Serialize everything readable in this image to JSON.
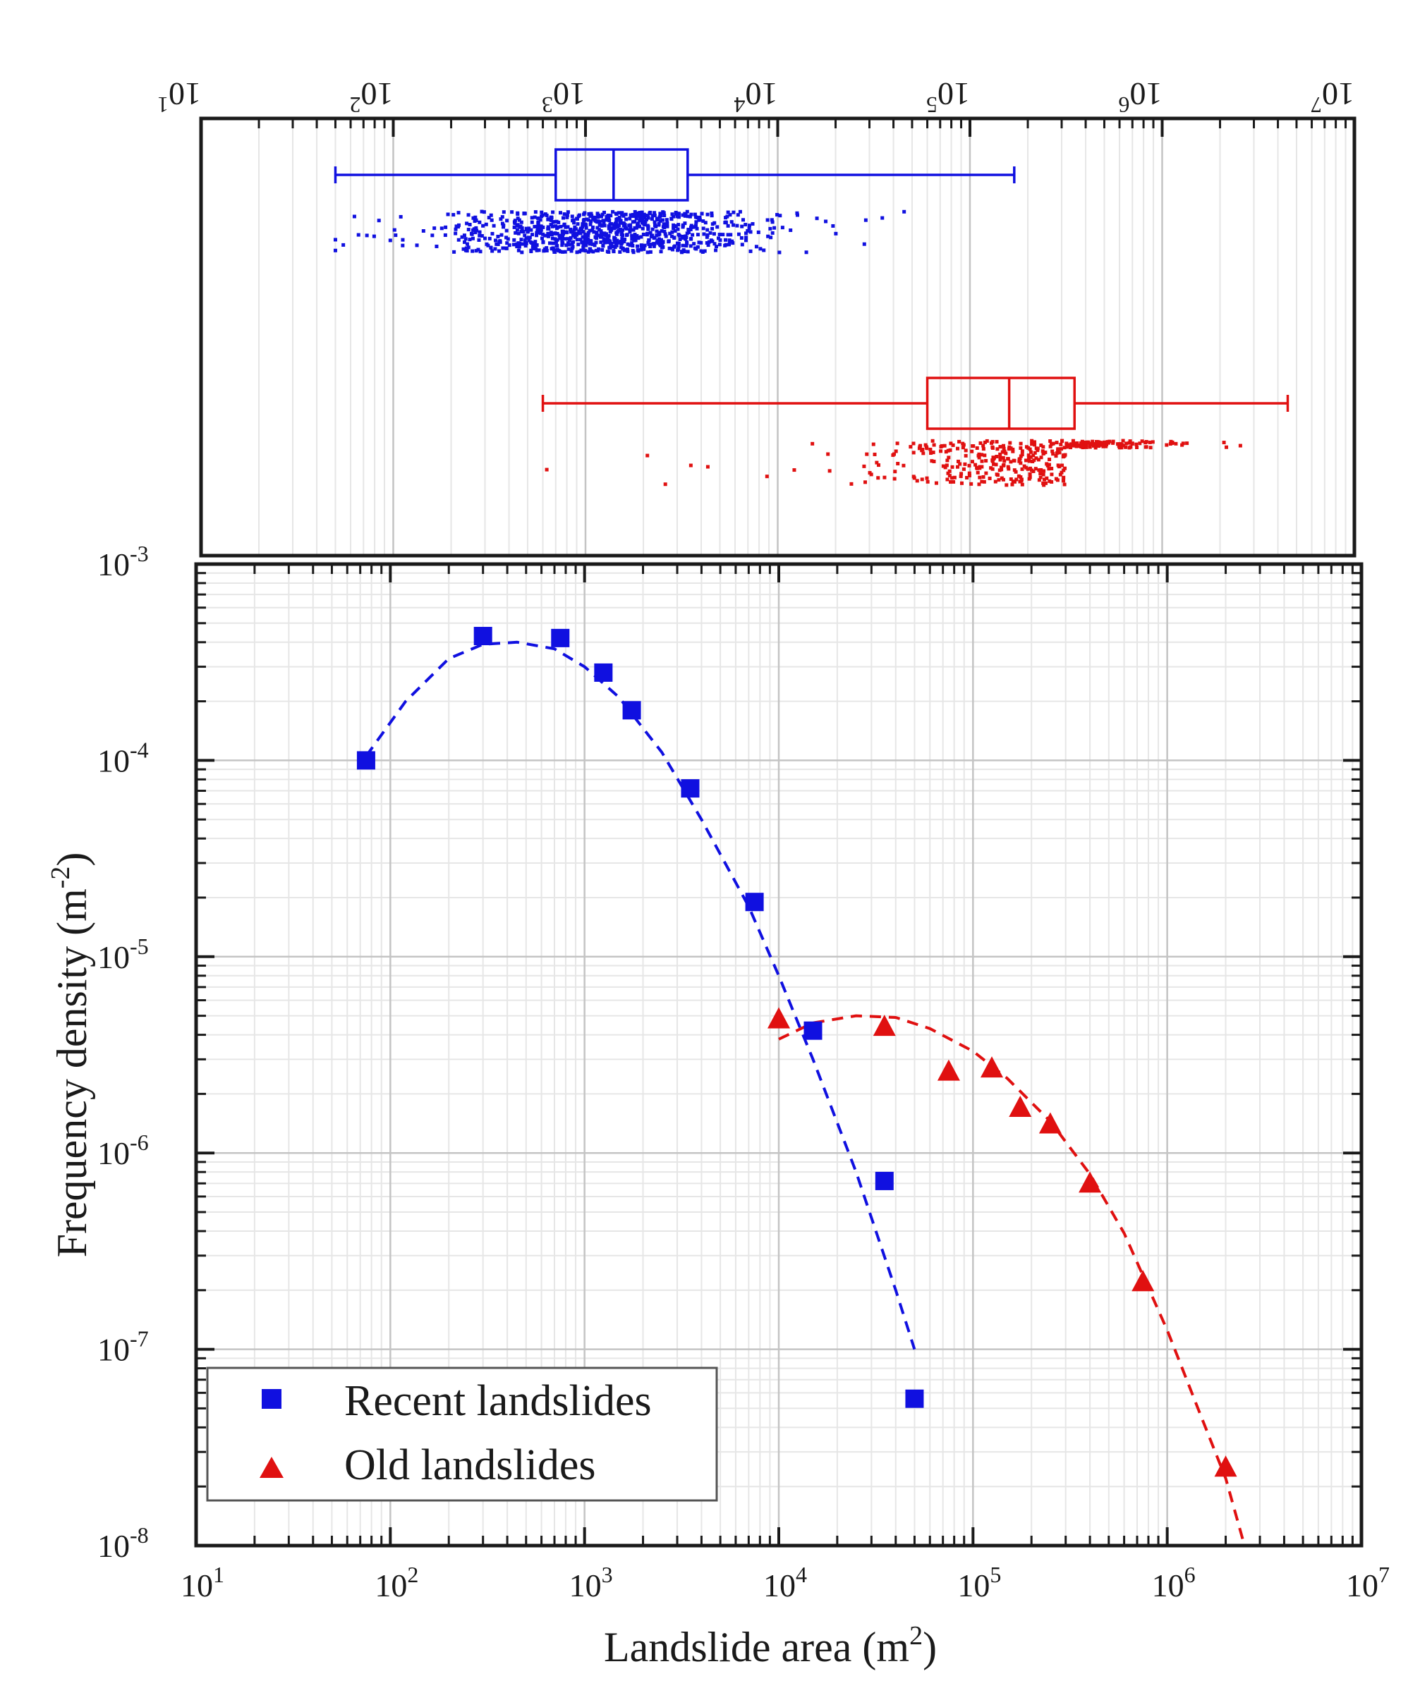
{
  "colors": {
    "recent": "#1010e0",
    "old": "#e01010",
    "axis": "#1a1a1a",
    "grid_major": "#c4c4c4",
    "grid_minor": "#e6e6e6"
  },
  "chart_data": [
    {
      "panel": "top",
      "type": "box",
      "x_scale": "log",
      "xlim": [
        10,
        10000000
      ],
      "x_tick_values": [
        10,
        100,
        1000,
        10000,
        100000,
        1000000,
        10000000
      ],
      "x_tick_labels": [
        {
          "base": "10",
          "exp": "1"
        },
        {
          "base": "10",
          "exp": "2"
        },
        {
          "base": "10",
          "exp": "3"
        },
        {
          "base": "10",
          "exp": "4"
        },
        {
          "base": "10",
          "exp": "5"
        },
        {
          "base": "10",
          "exp": "6"
        },
        {
          "base": "10",
          "exp": "7"
        }
      ],
      "series": [
        {
          "name": "Recent landslides",
          "min": 50,
          "q1": 700,
          "median": 1400,
          "q3": 3400,
          "max": 170000,
          "scatter_range": [
            50,
            90000
          ],
          "scatter_mode": 1200,
          "scatter_count": 900
        },
        {
          "name": "Old landslides",
          "min": 600,
          "q1": 60000,
          "median": 160000,
          "q3": 350000,
          "max": 4500000,
          "scatter_range": [
            600,
            4500000
          ],
          "scatter_mode": 200000,
          "scatter_count": 420
        }
      ]
    },
    {
      "panel": "bottom",
      "type": "scatter",
      "x_scale": "log",
      "y_scale": "log",
      "xlim": [
        10,
        10000000
      ],
      "ylim": [
        1e-08,
        0.001
      ],
      "xlabel": {
        "text": "Landslide area (m",
        "sup": "2",
        "suffix": ")"
      },
      "ylabel": {
        "text": "Frequency density (m",
        "sup": "-2",
        "suffix": ")"
      },
      "x_tick_values": [
        10,
        100,
        1000,
        10000,
        100000,
        1000000,
        10000000
      ],
      "x_tick_labels": [
        {
          "base": "10",
          "exp": "1"
        },
        {
          "base": "10",
          "exp": "2"
        },
        {
          "base": "10",
          "exp": "3"
        },
        {
          "base": "10",
          "exp": "4"
        },
        {
          "base": "10",
          "exp": "5"
        },
        {
          "base": "10",
          "exp": "6"
        },
        {
          "base": "10",
          "exp": "7"
        }
      ],
      "y_tick_values": [
        1e-08,
        1e-07,
        1e-06,
        1e-05,
        0.0001,
        0.001
      ],
      "y_tick_labels": [
        {
          "base": "10",
          "exp": "-8"
        },
        {
          "base": "10",
          "exp": "-7"
        },
        {
          "base": "10",
          "exp": "-6"
        },
        {
          "base": "10",
          "exp": "-5"
        },
        {
          "base": "10",
          "exp": "-4"
        },
        {
          "base": "10",
          "exp": "-3"
        }
      ],
      "legend": {
        "placement": "bottom-left"
      },
      "series": [
        {
          "name": "Recent landslides",
          "marker": "square",
          "x": [
            75,
            300,
            750,
            1250,
            1750,
            3500,
            7500,
            15000,
            35000,
            50000
          ],
          "y": [
            0.0001,
            0.00043,
            0.00042,
            0.00028,
            0.00018,
            7.2e-05,
            1.9e-05,
            4.2e-06,
            7.2e-07,
            5.6e-08
          ],
          "fit": {
            "style": "dashed",
            "x": [
              75,
              120,
              200,
              300,
              450,
              700,
              1000,
              1500,
              2500,
              4000,
              7000,
              10000,
              15000,
              25000,
              40000,
              50000
            ],
            "y": [
              0.000105,
              0.0002,
              0.00033,
              0.00039,
              0.0004,
              0.00037,
              0.0003,
              0.00021,
              0.00011,
              5e-05,
              1.8e-05,
              8e-06,
              3e-06,
              8e-07,
              2e-07,
              1e-07
            ]
          }
        },
        {
          "name": "Old landslides",
          "marker": "triangle",
          "x": [
            10000,
            35000,
            75000,
            125000,
            175000,
            250000,
            400000,
            750000,
            2000000
          ],
          "y": [
            4.8e-06,
            4.4e-06,
            2.6e-06,
            2.7e-06,
            1.7e-06,
            1.4e-06,
            7e-07,
            2.2e-07,
            2.5e-08
          ],
          "fit": {
            "style": "dashed",
            "x": [
              10000,
              15000,
              25000,
              40000,
              60000,
              100000,
              150000,
              250000,
              400000,
              600000,
              1000000,
              1500000,
              2000000,
              2500000
            ],
            "y": [
              3.8e-06,
              4.6e-06,
              5e-06,
              4.9e-06,
              4.3e-06,
              3.3e-06,
              2.4e-06,
              1.45e-06,
              7.8e-07,
              3.9e-07,
              1.25e-07,
              4.5e-08,
              2.2e-08,
              1e-08
            ]
          }
        }
      ]
    }
  ]
}
